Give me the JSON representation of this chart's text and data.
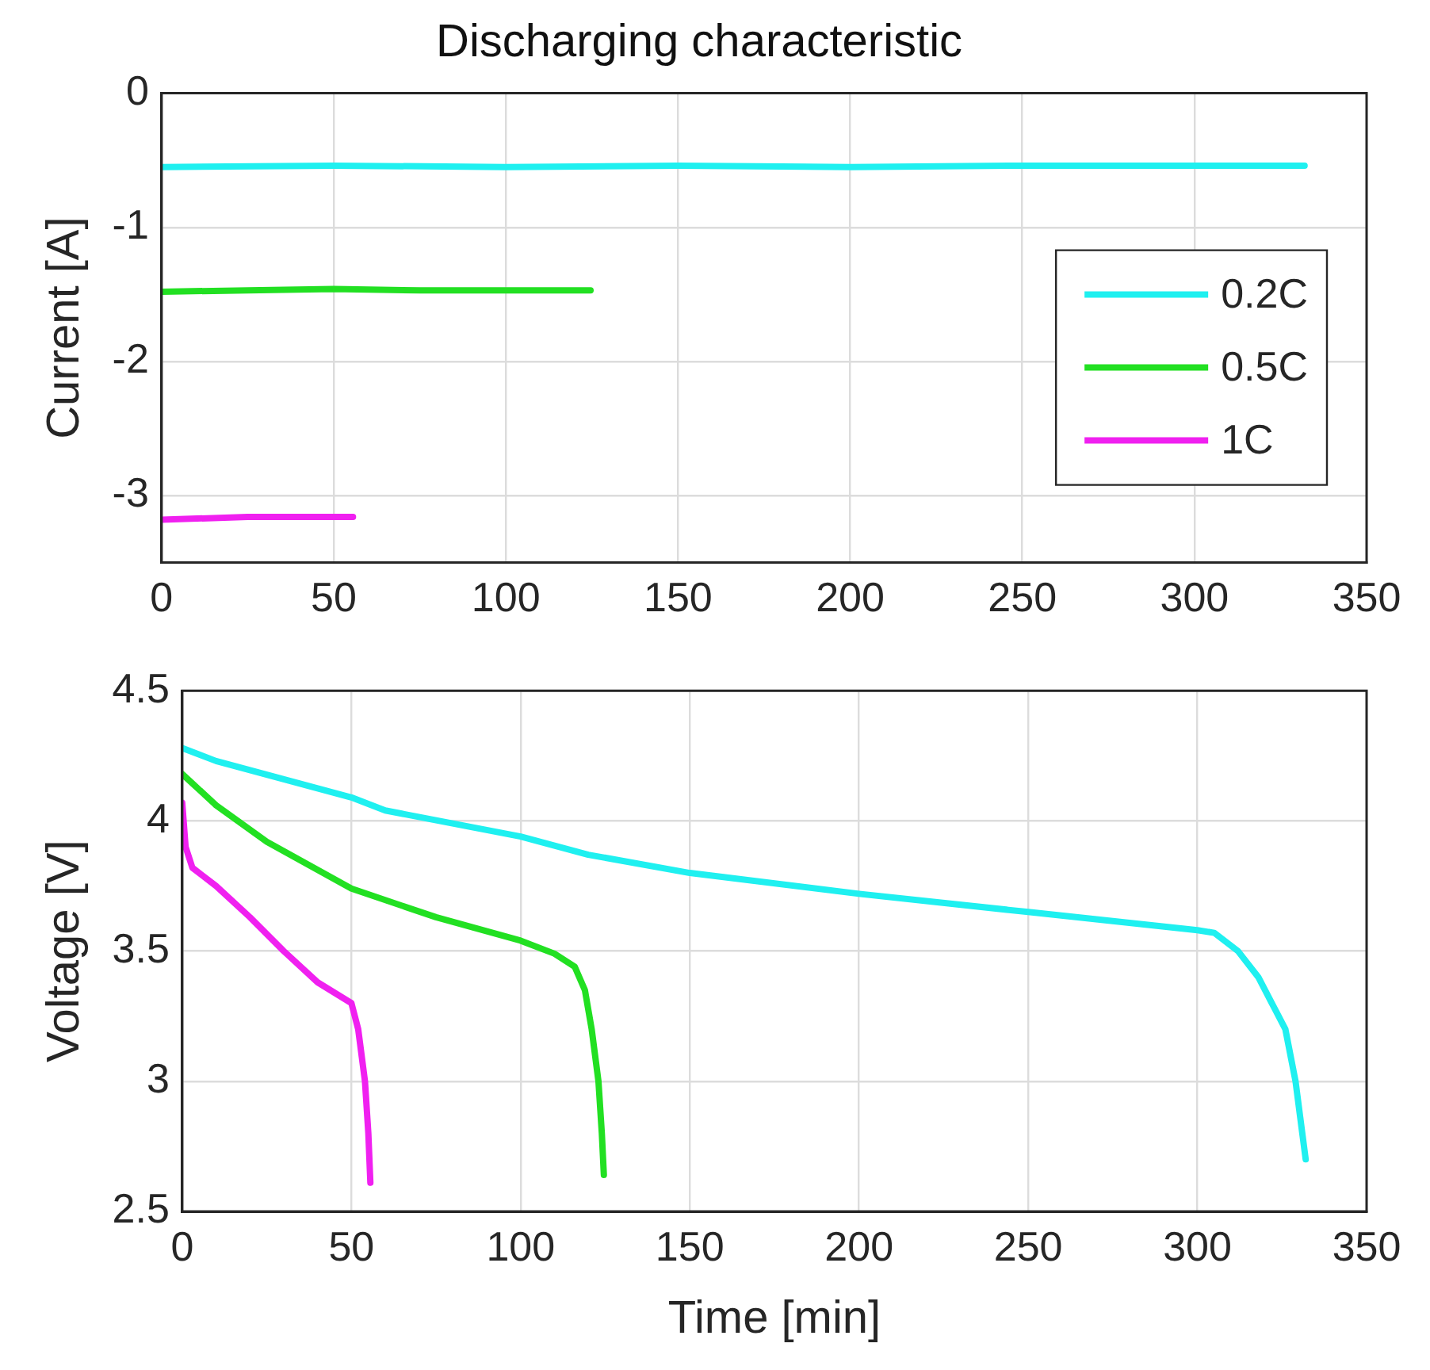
{
  "chart_data": [
    {
      "type": "line",
      "title": "Discharging characteristic",
      "ylabel": "Current [A]",
      "xlim": [
        0,
        350
      ],
      "xticks": [
        0,
        50,
        100,
        150,
        200,
        250,
        300,
        350
      ],
      "ylim": [
        -3.5,
        0
      ],
      "yticks": [
        -3,
        -2,
        -1,
        0
      ],
      "grid": true,
      "legend": "right",
      "series": [
        {
          "name": "0.2C",
          "color": "#1ff0f0",
          "x": [
            0,
            50,
            100,
            150,
            200,
            250,
            300,
            332
          ],
          "values": [
            -0.55,
            -0.54,
            -0.55,
            -0.54,
            -0.55,
            -0.54,
            -0.54,
            -0.54
          ]
        },
        {
          "name": "0.5C",
          "color": "#22e022",
          "x": [
            0,
            25,
            50,
            75,
            100,
            124.6
          ],
          "values": [
            -1.48,
            -1.47,
            -1.46,
            -1.47,
            -1.47,
            -1.47
          ]
        },
        {
          "name": "1C",
          "color": "#f020f0",
          "x": [
            0,
            25,
            55.6
          ],
          "values": [
            -3.18,
            -3.16,
            -3.16
          ]
        }
      ]
    },
    {
      "type": "line",
      "xlabel": "Time [min]",
      "ylabel": "Voltage [V]",
      "xlim": [
        0,
        350
      ],
      "xticks": [
        0,
        50,
        100,
        150,
        200,
        250,
        300,
        350
      ],
      "ylim": [
        2.5,
        4.5
      ],
      "yticks": [
        2.5,
        3,
        3.5,
        4,
        4.5
      ],
      "grid": true,
      "series": [
        {
          "color": "#1ff0f0",
          "x": [
            0,
            10,
            50,
            60,
            100,
            120,
            150,
            200,
            250,
            300,
            305,
            312,
            318,
            322,
            326,
            329,
            331,
            332
          ],
          "values": [
            4.28,
            4.23,
            4.09,
            4.04,
            3.94,
            3.87,
            3.8,
            3.72,
            3.65,
            3.58,
            3.57,
            3.5,
            3.4,
            3.3,
            3.2,
            3.0,
            2.8,
            2.7
          ]
        },
        {
          "color": "#22e022",
          "x": [
            0,
            10,
            25,
            50,
            75,
            100,
            110,
            116,
            119,
            121,
            123,
            124,
            124.6
          ],
          "values": [
            4.18,
            4.06,
            3.92,
            3.74,
            3.63,
            3.54,
            3.49,
            3.44,
            3.35,
            3.2,
            3.0,
            2.8,
            2.64
          ]
        },
        {
          "color": "#f020f0",
          "x": [
            0,
            1,
            3,
            10,
            20,
            30,
            40,
            50,
            52,
            54,
            55,
            55.6
          ],
          "values": [
            4.07,
            3.9,
            3.82,
            3.75,
            3.63,
            3.5,
            3.38,
            3.3,
            3.2,
            3.0,
            2.8,
            2.61
          ]
        }
      ]
    }
  ]
}
